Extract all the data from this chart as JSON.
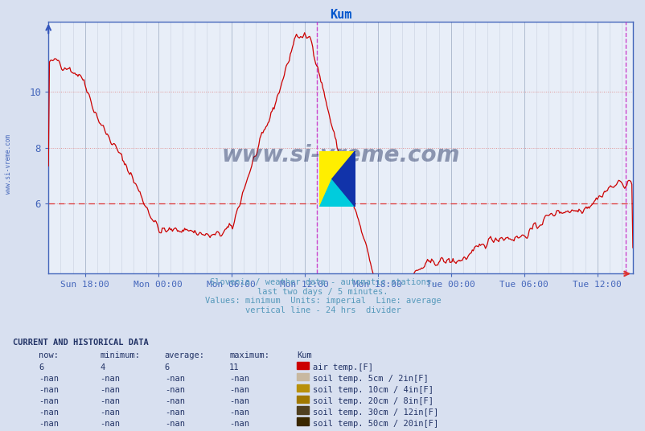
{
  "title": "Kum",
  "title_color": "#0055cc",
  "bg_color": "#d8e0f0",
  "plot_bg_color": "#e8eef8",
  "line_color": "#cc0000",
  "vline_color": "#cc44cc",
  "axis_color": "#4466bb",
  "tick_color": "#4466bb",
  "avg_value": 6,
  "y_min": 3.5,
  "y_max": 12.5,
  "y_ticks": [
    6,
    8,
    10
  ],
  "x_tick_labels": [
    "Sun 18:00",
    "Mon 00:00",
    "Mon 06:00",
    "Mon 12:00",
    "Mon 18:00",
    "Tue 00:00",
    "Tue 06:00",
    "Tue 12:00"
  ],
  "subtitle_lines": [
    "Slovenia / weather data - automatic stations.",
    "last two days / 5 minutes.",
    "Values: minimum  Units: imperial  Line: average",
    "vertical line - 24 hrs  divider"
  ],
  "subtitle_color": "#5599bb",
  "legend_title": "Kum",
  "legend_entries": [
    {
      "label": "air temp.[F]",
      "color": "#cc0000"
    },
    {
      "label": "soil temp. 5cm / 2in[F]",
      "color": "#c8b8a0"
    },
    {
      "label": "soil temp. 10cm / 4in[F]",
      "color": "#b8900a"
    },
    {
      "label": "soil temp. 20cm / 8in[F]",
      "color": "#a07800"
    },
    {
      "label": "soil temp. 30cm / 12in[F]",
      "color": "#504020"
    },
    {
      "label": "soil temp. 50cm / 20in[F]",
      "color": "#3a2800"
    }
  ],
  "row_now": [
    "6",
    "-nan",
    "-nan",
    "-nan",
    "-nan",
    "-nan"
  ],
  "row_min": [
    "4",
    "-nan",
    "-nan",
    "-nan",
    "-nan",
    "-nan"
  ],
  "row_avg": [
    "6",
    "-nan",
    "-nan",
    "-nan",
    "-nan",
    "-nan"
  ],
  "row_max": [
    "11",
    "-nan",
    "-nan",
    "-nan",
    "-nan",
    "-nan"
  ],
  "watermark": "www.si-vreme.com",
  "watermark_color": "#1a2a5a",
  "left_label": "www.si-vreme.com",
  "left_label_color": "#4466bb"
}
